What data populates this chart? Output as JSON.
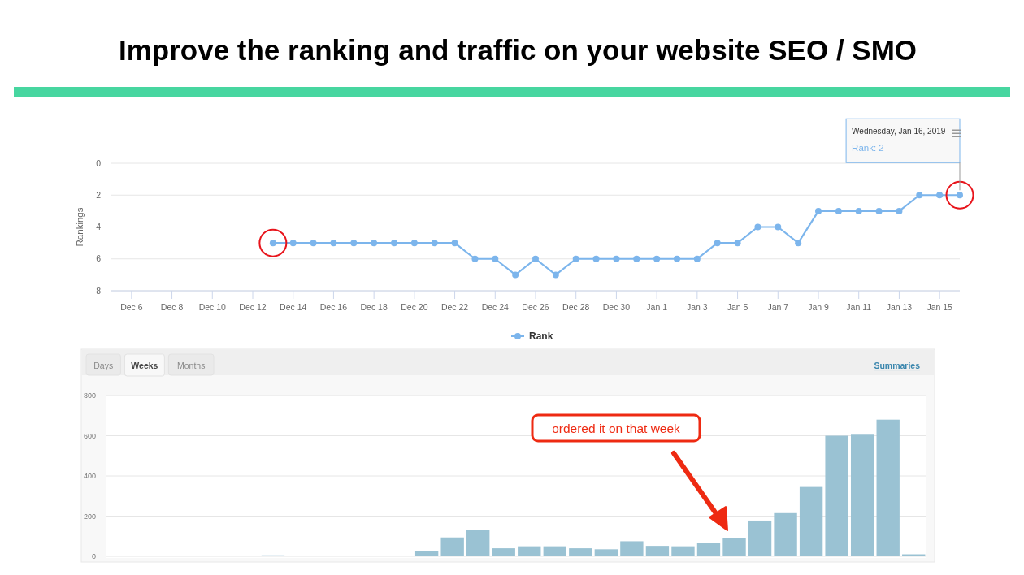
{
  "chart_data": [
    {
      "type": "line",
      "title": "Improve the ranking and traffic on your website SEO / SMO",
      "ylabel": "Rankings",
      "x": [
        "2018-12-13",
        "2018-12-14",
        "2018-12-15",
        "2018-12-16",
        "2018-12-17",
        "2018-12-18",
        "2018-12-19",
        "2018-12-20",
        "2018-12-21",
        "2018-12-22",
        "2018-12-23",
        "2018-12-24",
        "2018-12-25",
        "2018-12-26",
        "2018-12-27",
        "2018-12-28",
        "2018-12-29",
        "2018-12-30",
        "2018-12-31",
        "2019-01-01",
        "2019-01-02",
        "2019-01-03",
        "2019-01-04",
        "2019-01-05",
        "2019-01-06",
        "2019-01-07",
        "2019-01-08",
        "2019-01-09",
        "2019-01-10",
        "2019-01-11",
        "2019-01-12",
        "2019-01-13",
        "2019-01-14",
        "2019-01-15",
        "2019-01-16"
      ],
      "series": [
        {
          "name": "Rank",
          "color": "#7cb5ec",
          "values": [
            5,
            5,
            5,
            5,
            5,
            5,
            5,
            5,
            5,
            5,
            6,
            6,
            7,
            6,
            7,
            6,
            6,
            6,
            6,
            6,
            6,
            6,
            5,
            5,
            4,
            4,
            5,
            3,
            3,
            3,
            3,
            3,
            2,
            2,
            2
          ]
        }
      ],
      "xlim": [
        "2018-12-05",
        "2019-01-16"
      ],
      "xticks": [
        {
          "value": "2018-12-06",
          "label": "Dec 6"
        },
        {
          "value": "2018-12-08",
          "label": "Dec 8"
        },
        {
          "value": "2018-12-10",
          "label": "Dec 10"
        },
        {
          "value": "2018-12-12",
          "label": "Dec 12"
        },
        {
          "value": "2018-12-14",
          "label": "Dec 14"
        },
        {
          "value": "2018-12-16",
          "label": "Dec 16"
        },
        {
          "value": "2018-12-18",
          "label": "Dec 18"
        },
        {
          "value": "2018-12-20",
          "label": "Dec 20"
        },
        {
          "value": "2018-12-22",
          "label": "Dec 22"
        },
        {
          "value": "2018-12-24",
          "label": "Dec 24"
        },
        {
          "value": "2018-12-26",
          "label": "Dec 26"
        },
        {
          "value": "2018-12-28",
          "label": "Dec 28"
        },
        {
          "value": "2018-12-30",
          "label": "Dec 30"
        },
        {
          "value": "2019-01-01",
          "label": "Jan 1"
        },
        {
          "value": "2019-01-03",
          "label": "Jan 3"
        },
        {
          "value": "2019-01-05",
          "label": "Jan 5"
        },
        {
          "value": "2019-01-07",
          "label": "Jan 7"
        },
        {
          "value": "2019-01-09",
          "label": "Jan 9"
        },
        {
          "value": "2019-01-11",
          "label": "Jan 11"
        },
        {
          "value": "2019-01-13",
          "label": "Jan 13"
        },
        {
          "value": "2019-01-15",
          "label": "Jan 15"
        }
      ],
      "ylim": [
        8,
        0
      ],
      "yticks": [
        0,
        2,
        4,
        6,
        8
      ],
      "grid": "y",
      "legend": "bottom",
      "marker": "circle",
      "line_style": "solid",
      "annotations": [
        "Wednesday, Jan 16, 2019",
        "Rank: 2"
      ]
    },
    {
      "type": "bar",
      "categories": [
        null,
        null,
        null,
        null,
        null,
        null,
        null,
        null,
        null,
        null,
        null,
        null,
        null,
        null,
        null,
        null,
        null,
        null,
        null,
        null,
        null,
        null,
        null,
        null,
        null,
        null,
        null,
        null,
        null,
        null,
        null,
        null
      ],
      "values": [
        4,
        0,
        4,
        0,
        3,
        0,
        5,
        3,
        4,
        0,
        3,
        0,
        27,
        94,
        133,
        40,
        50,
        50,
        40,
        35,
        75,
        52,
        50,
        65,
        92,
        178,
        215,
        345,
        600,
        605,
        680,
        10
      ],
      "color": "#9ac2d3",
      "ylim": [
        0,
        800
      ],
      "yticks": [
        0,
        200,
        400,
        600,
        800
      ],
      "grid": "y",
      "tick_labels": "y",
      "annotations": [
        "Days",
        "Weeks",
        "Months",
        "Summaries",
        "ordered it on that week"
      ]
    }
  ]
}
